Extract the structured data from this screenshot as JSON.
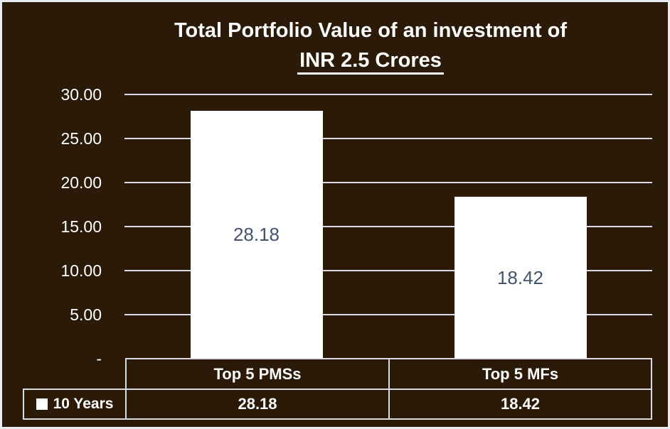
{
  "title": {
    "line1": "Total Portfolio Value of an investment of",
    "line2": "INR 2.5 Crores"
  },
  "chart_data": {
    "type": "bar",
    "title": "Total Portfolio Value of an investment of INR 2.5 Crores",
    "categories": [
      "Top 5 PMSs",
      "Top 5 MFs"
    ],
    "series": [
      {
        "name": "10 Years",
        "values": [
          28.18,
          18.42
        ]
      }
    ],
    "value_labels": [
      "28.18",
      "18.42"
    ],
    "xlabel": "",
    "ylabel": "",
    "ylim": [
      0,
      30
    ],
    "yticks": [
      {
        "value": 30,
        "label": "30.00"
      },
      {
        "value": 25,
        "label": "25.00"
      },
      {
        "value": 20,
        "label": "20.00"
      },
      {
        "value": 15,
        "label": "15.00"
      },
      {
        "value": 10,
        "label": "10.00"
      },
      {
        "value": 5,
        "label": "5.00"
      },
      {
        "value": 0,
        "label": "-"
      }
    ],
    "grid": true,
    "legend_position": "bottom-table"
  },
  "table": {
    "legend_label": "10 Years",
    "headers": [
      "Top 5 PMSs",
      "Top 5 MFs"
    ],
    "values": [
      "28.18",
      "18.42"
    ]
  },
  "colors": {
    "background": "#2b1a08",
    "frame_border": "#e9ebf3",
    "bar_fill": "#ffffff",
    "gridline": "#dbdce2",
    "bar_label_text": "#44546a",
    "text": "#ffffff",
    "table_border": "#d9dae2"
  }
}
